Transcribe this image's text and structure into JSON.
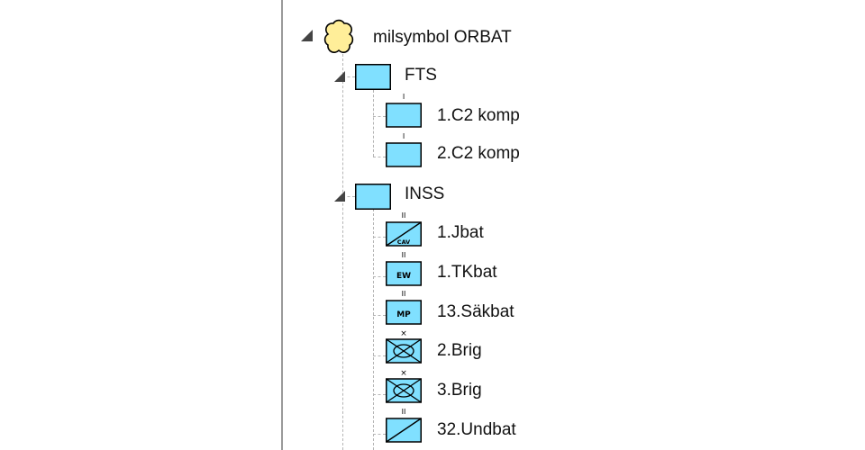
{
  "tree": {
    "root": {
      "label": "milsymbol ORBAT",
      "icon": "orbat-root-symbol-icon"
    },
    "groups": [
      {
        "label": "FTS",
        "icon": "unit-frame-icon",
        "children": [
          {
            "label": "1.C2 komp",
            "echelon": "I",
            "modifier": ""
          },
          {
            "label": "2.C2 komp",
            "echelon": "I",
            "modifier": ""
          }
        ]
      },
      {
        "label": "INSS",
        "icon": "unit-frame-icon",
        "children": [
          {
            "label": "1.Jbat",
            "echelon": "II",
            "modifier": "CAV"
          },
          {
            "label": "1.TKbat",
            "echelon": "II",
            "modifier": "EW"
          },
          {
            "label": "13.Säkbat",
            "echelon": "II",
            "modifier": "MP"
          },
          {
            "label": "2.Brig",
            "echelon": "×",
            "modifier": ""
          },
          {
            "label": "3.Brig",
            "echelon": "×",
            "modifier": ""
          },
          {
            "label": "32.Undbat",
            "echelon": "II",
            "modifier": ""
          }
        ]
      }
    ]
  },
  "colors": {
    "fill": "#80e0ff",
    "stroke": "#000000",
    "root_fill": "#ffee99",
    "guide": "#b5b5b5"
  }
}
